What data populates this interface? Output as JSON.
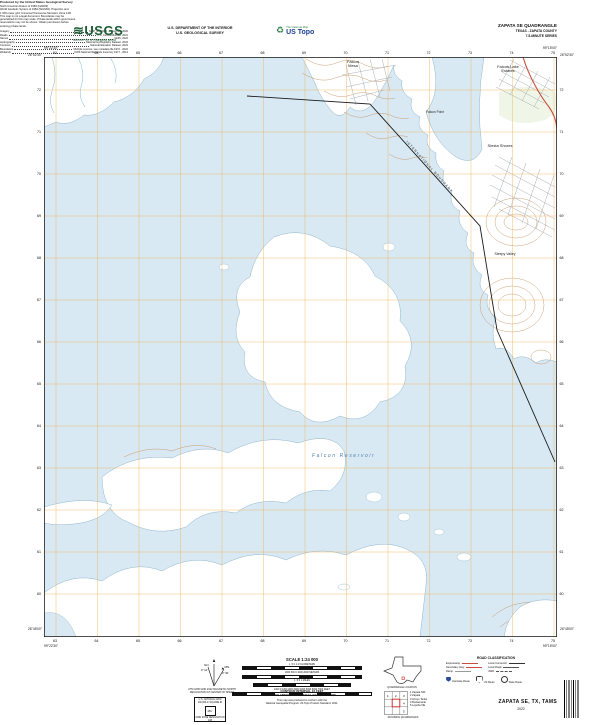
{
  "header": {
    "usgs_logo": "USGS",
    "usgs_tagline": "science for a changing world",
    "dept_line1": "U.S. DEPARTMENT OF THE INTERIOR",
    "dept_line2": "U.S. GEOLOGICAL SURVEY",
    "tnm_label": "The National Map",
    "ustopo_label": "US Topo",
    "quad_title": "ZAPATA SE QUADRANGLE",
    "quad_state": "TEXAS - ZAPATA COUNTY",
    "quad_series": "7.5-MINUTE SERIES"
  },
  "map": {
    "corners": {
      "nw_lat": "26°52'30\"",
      "nw_lon": "99°22'30\"",
      "ne_lat": "26°52'30\"",
      "ne_lon": "99°15'00\"",
      "sw_lat": "26°45'00\"",
      "sw_lon": "99°22'30\"",
      "se_lat": "26°45'00\"",
      "se_lon": "99°15'00\""
    },
    "utm_eastings": [
      "63",
      "64",
      "65",
      "66",
      "67",
      "68",
      "69",
      "70",
      "71",
      "72",
      "73",
      "74",
      "75"
    ],
    "utm_northings": [
      "72",
      "71",
      "70",
      "69",
      "68",
      "67",
      "66",
      "65",
      "64",
      "63",
      "62",
      "61",
      "60"
    ],
    "labels": {
      "town1_line1": "Falcon",
      "town1_line2": "Mesa",
      "town2_line1": "Falcon Lake",
      "town2_line2": "Estates",
      "town3": "Siesta Shores",
      "town4": "Falcon Point",
      "town5": "Sleepy Valley",
      "reservoir": "Falcon Reservoir"
    },
    "boundary_label": "INTERNATIONAL BOUNDARY",
    "colors": {
      "water": "#d9e9f4",
      "shore": "#8fb6cc",
      "contour": "#bf8a52",
      "grid": "#f0a93f",
      "road_red": "#c94f3d",
      "boundary": "#1a1a1a",
      "usgs_green": "#1c5c34",
      "shield_blue": "#27489c"
    }
  },
  "footer": {
    "produced_by": "Produced by the United States Geological Survey",
    "prod_lines": [
      "North American Datum of 1983 (NAD83)",
      "World Geodetic System of 1984 (WGS84).  Projection and",
      "1 000-meter grid: Universal Transverse Mercator, Zone 14R",
      "This map is not a legal document. Boundaries may be",
      "generalized for this map scale. Private lands within government",
      "reservations may not be shown. Obtain permission before",
      "entering private lands."
    ],
    "sources": [
      {
        "k": "Imagery",
        "v": "NAIP, July 2020 - November 2020"
      },
      {
        "k": "Roads",
        "v": "U.S. Census Bureau, 2021"
      },
      {
        "k": "Names",
        "v": "GNIS, 2022"
      },
      {
        "k": "Hydrography",
        "v": "National Hydrography Dataset, 2022"
      },
      {
        "k": "Contours",
        "v": "National Elevation Dataset, 2022"
      },
      {
        "k": "Boundaries",
        "v": "Multiple sources; see metadata file 1972 - 2022"
      },
      {
        "k": "Wetlands",
        "v": "FWS National Wetlands Inventory 1977 - 2014"
      }
    ],
    "declination": {
      "mn": "MN",
      "gn": "GN",
      "mn_val": "3° 30'",
      "gn_val": "0° 14'",
      "cap1": "UTM GRID AND 2022 MAGNETIC NORTH",
      "cap2": "DECLINATION AT CENTER OF SHEET"
    },
    "usng": {
      "l1": "U.S. NATIONAL GRID",
      "l2": "100,000-m SQUARE ID",
      "sq": "MU",
      "l3": "GRID ZONE DESIGNATION",
      "l4": "14R"
    },
    "scale": {
      "title": "SCALE 1:24 000",
      "bars": [
        {
          "unit": "KILOMETERS",
          "ticks": "1   .5   0   1   2"
        },
        {
          "unit": "METERS",
          "ticks": "1000   500   0   1000   2000"
        },
        {
          "unit": "MILES",
          "ticks": "1   .5   0   1"
        },
        {
          "unit": "FEET",
          "ticks": "1000  0  1000  2000  3000  4000  5000  6000  7000"
        }
      ],
      "contour1": "CONTOUR INTERVAL 10 FEET",
      "contour2": "NORTH AMERICAN VERTICAL DATUM OF 1988",
      "note1": "This map was produced to conform with the",
      "note2": "National Geospatial Program US Topo Product Standard, 2011."
    },
    "texas_caption": "QUADRANGLE LOCATION",
    "adjoining": {
      "caption": "ADJOINING QUADRANGLES",
      "items": [
        "Zapata NW",
        "Zapata",
        "Arroyo Tanks",
        "Bustamante",
        "Lopeño NE"
      ]
    },
    "road_class": {
      "title": "ROAD CLASSIFICATION",
      "r1": "Expressway",
      "r2": "Secondary Hwy",
      "r3": "Ramp",
      "r4": "Local Connector",
      "r5": "Local Road",
      "r6": "4WD",
      "s1": "Interstate Route",
      "s2": "US Route",
      "s3": "State Route"
    },
    "map_title": "ZAPATA SE, TX, TAMS",
    "map_year": "2022"
  }
}
